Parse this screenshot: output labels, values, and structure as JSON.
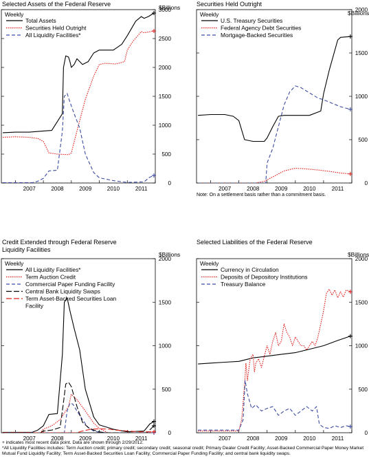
{
  "chart_data": [
    {
      "type": "line",
      "title": "Selected Assets of the Federal Reserve",
      "unit_label": "$Billions",
      "frequency_label": "Weekly",
      "x_ticks": [
        "2007",
        "2008",
        "2009",
        "2010",
        "2011"
      ],
      "xlim": [
        2006.5,
        2012.0
      ],
      "ylim": [
        0,
        3000
      ],
      "y_ticks": [
        0,
        500,
        1000,
        1500,
        2000,
        2500,
        3000
      ],
      "legend_position": "top-left",
      "grid": false,
      "series": [
        {
          "name": "Total Assets",
          "color": "#000000",
          "dash": "solid",
          "x": [
            2006.55,
            2007.0,
            2007.5,
            2008.0,
            2008.3,
            2008.68,
            2008.72,
            2008.8,
            2008.9,
            2008.95,
            2009.0,
            2009.1,
            2009.2,
            2009.4,
            2009.6,
            2009.8,
            2010.0,
            2010.2,
            2010.5,
            2010.8,
            2011.0,
            2011.3,
            2011.5,
            2011.6,
            2011.75,
            2011.95
          ],
          "y": [
            870,
            880,
            880,
            900,
            910,
            1200,
            2000,
            2200,
            2180,
            2100,
            2000,
            2050,
            2150,
            2050,
            2100,
            2250,
            2300,
            2300,
            2300,
            2400,
            2550,
            2800,
            2880,
            2850,
            2880,
            2940
          ]
        },
        {
          "name": "Securities Held Outright",
          "color": "#e0201b",
          "dash": "dotted",
          "x": [
            2006.55,
            2007.0,
            2007.5,
            2007.8,
            2008.0,
            2008.2,
            2008.5,
            2008.9,
            2009.0,
            2009.2,
            2009.5,
            2009.8,
            2010.0,
            2010.2,
            2010.6,
            2010.9,
            2011.0,
            2011.2,
            2011.5,
            2011.6,
            2011.95
          ],
          "y": [
            790,
            800,
            790,
            770,
            720,
            520,
            500,
            490,
            520,
            900,
            1450,
            1850,
            2050,
            2070,
            2060,
            2100,
            2300,
            2450,
            2620,
            2600,
            2630
          ]
        },
        {
          "name": "All Liquidity Facilities*",
          "color": "#3a4aa0",
          "dash": "dashed",
          "x": [
            2006.55,
            2007.6,
            2007.8,
            2008.0,
            2008.2,
            2008.5,
            2008.68,
            2008.75,
            2008.85,
            2008.95,
            2009.1,
            2009.3,
            2009.5,
            2009.8,
            2010.0,
            2010.5,
            2011.0,
            2011.6,
            2011.8,
            2011.95
          ],
          "y": [
            5,
            5,
            30,
            80,
            210,
            220,
            900,
            1500,
            1550,
            1400,
            1200,
            950,
            500,
            180,
            90,
            40,
            10,
            20,
            100,
            130
          ]
        }
      ]
    },
    {
      "type": "line",
      "title": "Securities Held Outright",
      "unit_label": "$Billions",
      "frequency_label": "Weekly",
      "x_ticks": [
        "2007",
        "2008",
        "2009",
        "2010",
        "2011"
      ],
      "xlim": [
        2006.5,
        2012.0
      ],
      "ylim": [
        0,
        2000
      ],
      "y_ticks": [
        0,
        500,
        1000,
        1500,
        2000
      ],
      "legend_position": "top-left",
      "grid": false,
      "note": "Note: On a settlement basis rather than a commitment basis.",
      "series": [
        {
          "name": "U.S. Treasury Securities",
          "color": "#000000",
          "dash": "solid",
          "x": [
            2006.55,
            2007.0,
            2007.5,
            2007.8,
            2008.0,
            2008.2,
            2008.5,
            2008.9,
            2009.0,
            2009.2,
            2009.4,
            2009.6,
            2009.8,
            2010.0,
            2010.5,
            2010.9,
            2011.0,
            2011.2,
            2011.5,
            2011.6,
            2011.95
          ],
          "y": [
            780,
            790,
            790,
            770,
            720,
            500,
            480,
            480,
            520,
            650,
            770,
            780,
            780,
            780,
            780,
            830,
            1030,
            1300,
            1650,
            1680,
            1690
          ]
        },
        {
          "name": "Federal Agency Debt Securities",
          "color": "#e0201b",
          "dash": "dotted",
          "x": [
            2006.55,
            2008.6,
            2008.9,
            2009.2,
            2009.6,
            2010.0,
            2010.3,
            2010.8,
            2011.2,
            2011.6,
            2011.95
          ],
          "y": [
            0,
            0,
            20,
            70,
            140,
            170,
            165,
            150,
            135,
            115,
            105
          ]
        },
        {
          "name": "Mortgage-Backed Securities",
          "color": "#3a4aa0",
          "dash": "dashed",
          "x": [
            2006.55,
            2008.95,
            2009.0,
            2009.2,
            2009.4,
            2009.6,
            2009.8,
            2010.0,
            2010.2,
            2010.5,
            2010.8,
            2011.0,
            2011.3,
            2011.6,
            2011.95
          ],
          "y": [
            0,
            0,
            230,
            400,
            650,
            900,
            1050,
            1120,
            1100,
            1040,
            980,
            960,
            920,
            880,
            850
          ]
        }
      ]
    },
    {
      "type": "line",
      "title": "Credit Extended through Federal Reserve Liquidity Facilities",
      "unit_label": "$Billions",
      "frequency_label": "Weekly",
      "x_ticks": [
        "2007",
        "2008",
        "2009",
        "2010",
        "2011"
      ],
      "xlim": [
        2006.5,
        2012.0
      ],
      "ylim": [
        0,
        2000
      ],
      "y_ticks": [
        0,
        500,
        1000,
        1500,
        2000
      ],
      "legend_position": "top-left",
      "grid": false,
      "series": [
        {
          "name": "All Liquidity Facilities*",
          "color": "#000000",
          "dash": "solid",
          "x": [
            2006.55,
            2007.6,
            2007.8,
            2008.0,
            2008.2,
            2008.5,
            2008.68,
            2008.75,
            2008.85,
            2008.95,
            2009.1,
            2009.3,
            2009.5,
            2009.8,
            2010.0,
            2010.5,
            2011.0,
            2011.6,
            2011.8,
            2011.95
          ],
          "y": [
            5,
            5,
            30,
            80,
            210,
            220,
            900,
            1500,
            1550,
            1400,
            1200,
            950,
            500,
            180,
            90,
            40,
            10,
            20,
            100,
            130
          ]
        },
        {
          "name": "Term Auction Credit",
          "color": "#e0201b",
          "dash": "dotted",
          "x": [
            2006.55,
            2007.9,
            2008.0,
            2008.3,
            2008.6,
            2008.9,
            2009.0,
            2009.2,
            2009.5,
            2009.8,
            2010.0,
            2010.3,
            2011.95
          ],
          "y": [
            0,
            0,
            40,
            80,
            150,
            300,
            440,
            380,
            250,
            110,
            50,
            0,
            0
          ]
        },
        {
          "name": "Commercial Paper Funding Facility",
          "color": "#3a4aa0",
          "dash": "dashed",
          "x": [
            2006.55,
            2008.75,
            2008.85,
            2008.95,
            2009.05,
            2009.2,
            2009.4,
            2009.6,
            2009.8,
            2010.0,
            2010.3,
            2011.95
          ],
          "y": [
            0,
            0,
            250,
            340,
            330,
            250,
            150,
            60,
            20,
            5,
            0,
            0
          ]
        },
        {
          "name": "Central Bank Liquidity Swaps",
          "color": "#000000",
          "dash": "longdash",
          "x": [
            2006.55,
            2007.9,
            2008.0,
            2008.3,
            2008.6,
            2008.7,
            2008.8,
            2008.9,
            2009.0,
            2009.2,
            2009.4,
            2009.6,
            2009.8,
            2010.0,
            2010.2,
            2011.0,
            2011.7,
            2011.95
          ],
          "y": [
            0,
            0,
            20,
            30,
            60,
            300,
            560,
            580,
            530,
            300,
            120,
            60,
            30,
            10,
            0,
            0,
            0,
            80
          ]
        },
        {
          "name": "Term Asset-Backed Securities Loan Facility",
          "color": "#e0201b",
          "dash": "longdash",
          "x": [
            2006.55,
            2009.2,
            2009.4,
            2009.7,
            2010.0,
            2010.3,
            2010.6,
            2011.0,
            2011.5,
            2011.95
          ],
          "y": [
            0,
            0,
            20,
            40,
            45,
            42,
            30,
            20,
            10,
            10
          ]
        }
      ]
    },
    {
      "type": "line",
      "title": "Selected Liabilities of the Federal Reserve",
      "unit_label": "$Billions",
      "frequency_label": "Weekly",
      "x_ticks": [
        "2007",
        "2008",
        "2009",
        "2010",
        "2011"
      ],
      "xlim": [
        2006.5,
        2012.0
      ],
      "ylim": [
        0,
        2000
      ],
      "y_ticks": [
        0,
        500,
        1000,
        1500,
        2000
      ],
      "legend_position": "top-left",
      "grid": false,
      "series": [
        {
          "name": "Currency in Circulation",
          "color": "#000000",
          "dash": "solid",
          "x": [
            2006.55,
            2007.0,
            2007.5,
            2008.0,
            2008.5,
            2009.0,
            2009.5,
            2010.0,
            2010.5,
            2011.0,
            2011.5,
            2011.95
          ],
          "y": [
            790,
            800,
            810,
            820,
            860,
            880,
            900,
            920,
            960,
            1000,
            1060,
            1110
          ]
        },
        {
          "name": "Deposits of Depository Institutions",
          "color": "#e0201b",
          "dash": "dotted",
          "x": [
            2006.55,
            2008.0,
            2008.1,
            2008.2,
            2008.25,
            2008.3,
            2008.4,
            2008.5,
            2008.55,
            2008.6,
            2008.7,
            2008.8,
            2008.9,
            2009.0,
            2009.1,
            2009.2,
            2009.3,
            2009.4,
            2009.5,
            2009.6,
            2009.7,
            2009.8,
            2009.9,
            2010.0,
            2010.1,
            2010.2,
            2010.3,
            2010.4,
            2010.5,
            2010.6,
            2010.7,
            2010.8,
            2010.9,
            2011.0,
            2011.1,
            2011.2,
            2011.3,
            2011.4,
            2011.5,
            2011.6,
            2011.7,
            2011.8,
            2011.95
          ],
          "y": [
            20,
            20,
            150,
            550,
            800,
            600,
            850,
            900,
            700,
            800,
            850,
            750,
            880,
            1000,
            900,
            1050,
            1150,
            1000,
            1050,
            1250,
            1150,
            1100,
            1000,
            1100,
            1050,
            1000,
            1000,
            950,
            1000,
            1050,
            1000,
            1100,
            1250,
            1400,
            1600,
            1650,
            1580,
            1640,
            1550,
            1620,
            1560,
            1640,
            1620
          ]
        },
        {
          "name": "Treasury Balance",
          "color": "#3a4aa0",
          "dash": "dashed",
          "x": [
            2006.55,
            2008.0,
            2008.15,
            2008.22,
            2008.3,
            2008.45,
            2008.6,
            2008.8,
            2009.0,
            2009.2,
            2009.4,
            2009.6,
            2009.8,
            2010.0,
            2010.2,
            2010.4,
            2010.6,
            2010.75,
            2010.85,
            2011.0,
            2011.2,
            2011.4,
            2011.6,
            2011.8,
            2011.95
          ],
          "y": [
            30,
            30,
            150,
            600,
            450,
            280,
            320,
            250,
            280,
            300,
            200,
            250,
            280,
            200,
            250,
            300,
            250,
            300,
            100,
            60,
            50,
            80,
            60,
            80,
            70
          ]
        }
      ]
    }
  ],
  "footnotes": [
    "+ indicates most recent data point. Data are shown through 2/29/2012.",
    "*All Liquidity Facilities includes: Term Auction credit; primary credit; secondary credit; seasonal credit; Primary Dealer Credit Facility; Asset-Backed Commercial Paper Money Market Mutual Fund Liquidity Facility; Term Asset-Backed Securities Loan Facility; Commercial Paper Funding Facility; and central bank liquidity swaps."
  ]
}
